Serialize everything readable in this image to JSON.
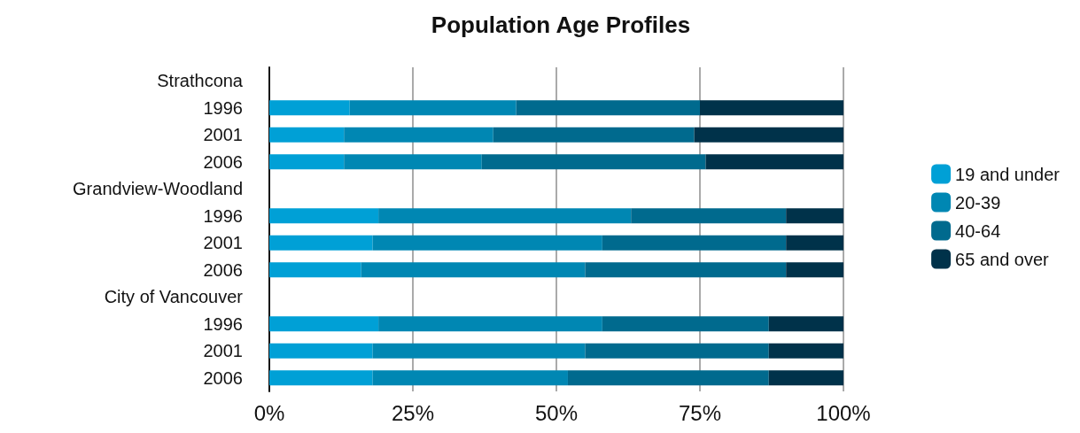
{
  "chart_data": {
    "type": "bar",
    "title": "Population Age Profiles",
    "orientation": "horizontal",
    "stacked": true,
    "categories": [
      "Strathcona",
      "1996",
      "2001",
      "2006",
      "Grandview-Woodland",
      "1996",
      "2001",
      "2006",
      "City of Vancouver",
      "1996",
      "2001",
      "2006"
    ],
    "series": [
      {
        "name": "19 and under",
        "color": "#00a0d6",
        "values": [
          null,
          14,
          13,
          13,
          null,
          19,
          18,
          16,
          null,
          19,
          18,
          18
        ]
      },
      {
        "name": "20-39",
        "color": "#0087b3",
        "values": [
          null,
          29,
          26,
          24,
          null,
          44,
          40,
          39,
          null,
          39,
          37,
          34
        ]
      },
      {
        "name": "40-64",
        "color": "#006a8e",
        "values": [
          null,
          32,
          35,
          39,
          null,
          27,
          32,
          35,
          null,
          29,
          32,
          35
        ]
      },
      {
        "name": "65 and over",
        "color": "#00324a",
        "values": [
          null,
          25,
          26,
          24,
          null,
          10,
          10,
          10,
          null,
          13,
          13,
          13
        ]
      }
    ],
    "xlim": [
      0,
      100
    ],
    "xticks": [
      {
        "value": 0,
        "label": "0%"
      },
      {
        "value": 25,
        "label": "25%"
      },
      {
        "value": 50,
        "label": "50%"
      },
      {
        "value": 75,
        "label": "75%"
      },
      {
        "value": 100,
        "label": "100%"
      }
    ],
    "grid": "x",
    "legend": "right"
  }
}
